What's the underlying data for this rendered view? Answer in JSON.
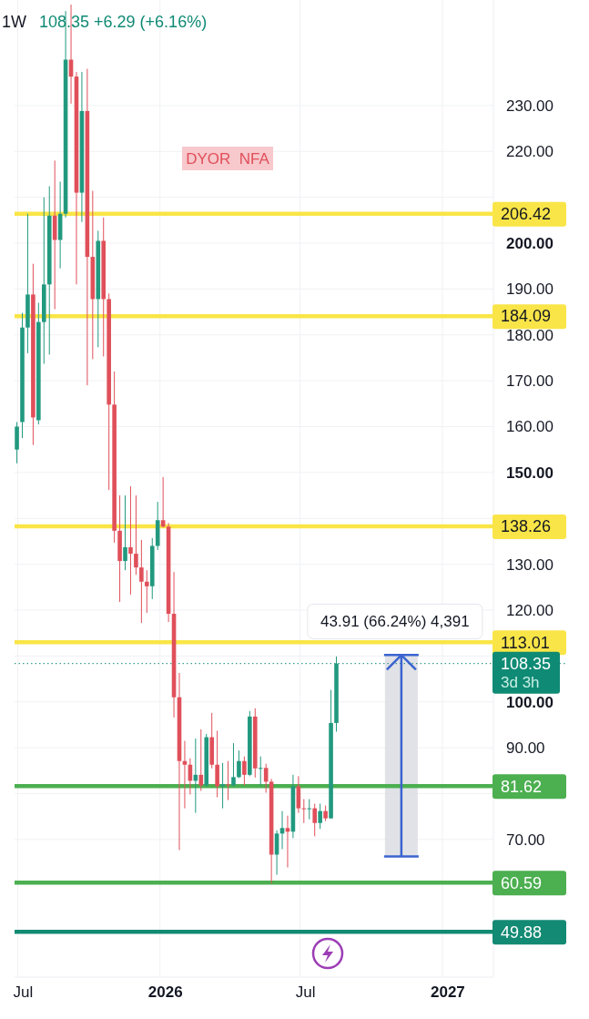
{
  "chart_data": {
    "type": "candlestick",
    "title": "1W",
    "subtitle": "108.35 +6.29 (+6.16%)",
    "x": [
      "2025-06-30",
      "2025-07-07",
      "2025-07-14",
      "2025-07-21",
      "2025-07-28",
      "2025-08-04",
      "2025-08-11",
      "2025-08-18",
      "2025-08-25",
      "2025-09-01",
      "2025-09-08",
      "2025-09-15",
      "2025-09-22",
      "2025-09-29",
      "2025-10-06",
      "2025-10-13",
      "2025-10-20",
      "2025-10-27",
      "2025-11-03",
      "2025-11-10",
      "2025-11-17",
      "2025-11-24",
      "2025-12-01",
      "2025-12-08",
      "2025-12-15",
      "2025-12-22",
      "2025-12-29",
      "2026-01-05",
      "2026-01-12",
      "2026-01-19",
      "2026-01-26",
      "2026-02-02",
      "2026-02-09",
      "2026-02-16",
      "2026-02-23",
      "2026-03-02",
      "2026-03-09",
      "2026-03-16",
      "2026-03-23",
      "2026-03-30",
      "2026-04-06",
      "2026-04-13",
      "2026-04-20",
      "2026-04-27",
      "2026-05-04",
      "2026-05-11",
      "2026-05-18",
      "2026-05-25",
      "2026-06-01",
      "2026-06-08",
      "2026-06-15",
      "2026-06-22",
      "2026-06-29",
      "2026-07-06",
      "2026-07-13",
      "2026-07-20",
      "2026-07-27",
      "2026-08-03",
      "2026-08-10",
      "2026-08-17"
    ],
    "ohlc": [
      [
        155,
        161,
        152,
        160
      ],
      [
        161,
        184.8,
        157.5,
        181.6
      ],
      [
        181.6,
        206.4,
        176,
        188.8
      ],
      [
        188.8,
        195.5,
        156,
        162
      ],
      [
        161.4,
        187,
        160.5,
        182.8
      ],
      [
        182.8,
        210,
        173.7,
        191
      ],
      [
        191,
        212.4,
        175.7,
        206
      ],
      [
        206,
        218,
        185.6,
        200.7
      ],
      [
        200.7,
        213.4,
        194.5,
        206.4
      ],
      [
        206.4,
        250.6,
        205.6,
        240
      ],
      [
        240,
        252,
        230.4,
        236.3
      ],
      [
        236.3,
        237.3,
        191,
        211
      ],
      [
        211,
        237.3,
        204.6,
        228.8
      ],
      [
        228.8,
        238,
        169,
        197
      ],
      [
        197,
        211.4,
        174.7,
        187.8
      ],
      [
        187.8,
        202.7,
        177.3,
        200.5
      ],
      [
        200.5,
        205.6,
        175.3,
        187.8
      ],
      [
        187.8,
        189,
        146.2,
        164.8
      ],
      [
        164.8,
        172,
        134.7,
        137.3
      ],
      [
        137.3,
        145,
        121.8,
        130.7
      ],
      [
        130.7,
        145,
        128.7,
        133.7
      ],
      [
        133.7,
        147,
        123.4,
        132.3
      ],
      [
        132.3,
        145,
        127.7,
        129.3
      ],
      [
        129.3,
        135.3,
        117.2,
        126.2
      ],
      [
        126.2,
        128.7,
        119.4,
        125.2
      ],
      [
        125.2,
        135.7,
        122.4,
        134
      ],
      [
        134,
        143.6,
        133.1,
        139.6
      ],
      [
        139.6,
        149,
        138,
        138.2
      ],
      [
        138.2,
        139,
        117.4,
        119.2
      ],
      [
        119.2,
        128.3,
        96.6,
        101
      ],
      [
        101,
        106.3,
        67.7,
        87.1
      ],
      [
        87.1,
        91.5,
        76.8,
        86.3
      ],
      [
        86.3,
        87.7,
        79.8,
        82.8
      ],
      [
        82.8,
        92,
        75.8,
        84.1
      ],
      [
        84.1,
        94,
        80.6,
        81.8
      ],
      [
        81.8,
        93,
        81.5,
        92.3
      ],
      [
        92.3,
        97.6,
        85.5,
        86.3
      ],
      [
        86.3,
        93.7,
        79.2,
        81.6
      ],
      [
        81.6,
        86.7,
        76.8,
        82
      ],
      [
        82,
        87.1,
        78.6,
        81.8
      ],
      [
        81.8,
        91,
        81.6,
        83.6
      ],
      [
        83.6,
        89.4,
        83.4,
        87.1
      ],
      [
        87.1,
        88.1,
        81.8,
        84.1
      ],
      [
        84.1,
        98,
        83.8,
        96.8
      ],
      [
        96.8,
        98.6,
        83.5,
        85.5
      ],
      [
        85.5,
        88.1,
        81.8,
        85.6
      ],
      [
        85.6,
        86.5,
        80.2,
        82.6
      ],
      [
        82.6,
        83.2,
        60.4,
        66.7
      ],
      [
        66.7,
        72,
        62.3,
        71.3
      ],
      [
        71.3,
        76.2,
        67.9,
        72.5
      ],
      [
        72.5,
        75.2,
        63.9,
        71.7
      ],
      [
        71.7,
        84.1,
        70.3,
        81.6
      ],
      [
        81.6,
        83.8,
        75.8,
        76.8
      ],
      [
        76.8,
        78.8,
        73.6,
        76.6
      ],
      [
        76.6,
        78.8,
        74.4,
        76.8
      ],
      [
        76.8,
        77.8,
        70.7,
        73.6
      ],
      [
        73.6,
        77.8,
        72.3,
        76.2
      ],
      [
        76.2,
        77.4,
        74,
        74.6
      ],
      [
        74.6,
        102.6,
        74.6,
        95.4
      ],
      [
        95.4,
        109.9,
        93.5,
        108.35
      ]
    ],
    "series": [
      {
        "type": "bar",
        "x": [
          "2026-11-09"
        ],
        "base": [
          66.3
        ],
        "values": [
          43.9
        ],
        "color": "#dcdde3"
      },
      {
        "type": "line",
        "x": [
          "2026-11-09",
          "2026-11-09"
        ],
        "values": [
          66.3,
          110.2
        ],
        "color": "#3b63d0"
      }
    ],
    "xlim": [
      "2025-06-27",
      "2027-03-08"
    ],
    "xticks": [
      {
        "value": "2025-07-01",
        "label": "Jul"
      },
      {
        "value": "2026-01-01",
        "label": "2026"
      },
      {
        "value": "2026-07-01",
        "label": "Jul"
      },
      {
        "value": "2027-01-01",
        "label": "2027"
      }
    ],
    "ylim": [
      40,
      253
    ],
    "yticks": [
      {
        "value": 70,
        "label": "70.00"
      },
      {
        "value": 80,
        "label": null
      },
      {
        "value": 90,
        "label": "90.00"
      },
      {
        "value": 100,
        "label": "100.00"
      },
      {
        "value": 110,
        "label": null
      },
      {
        "value": 120,
        "label": "120.00"
      },
      {
        "value": 130,
        "label": "130.00"
      },
      {
        "value": 140,
        "label": null
      },
      {
        "value": 150,
        "label": "150.00"
      },
      {
        "value": 160,
        "label": "160.00"
      },
      {
        "value": 170,
        "label": "170.00"
      },
      {
        "value": 180,
        "label": "180.00"
      },
      {
        "value": 190,
        "label": "190.00"
      },
      {
        "value": 200,
        "label": "200.00"
      },
      {
        "value": 210,
        "label": null
      },
      {
        "value": 220,
        "label": "220.00"
      },
      {
        "value": 230,
        "label": "230.00"
      }
    ],
    "ref_lines": [
      {
        "axis": "y",
        "value": 206.42,
        "label": "206.42",
        "color": "#f9e547"
      },
      {
        "axis": "y",
        "value": 184.09,
        "label": "184.09",
        "color": "#f9e547"
      },
      {
        "axis": "y",
        "value": 138.26,
        "label": "138.26",
        "color": "#f9e547"
      },
      {
        "axis": "y",
        "value": 113.01,
        "label": "113.01",
        "color": "#f9e547"
      },
      {
        "axis": "y",
        "value": 108.35,
        "label": "108.35",
        "color": "#0f8a74",
        "line_style": "dotted"
      },
      {
        "axis": "y",
        "value": 81.62,
        "label": "81.62",
        "color": "#4caf50"
      },
      {
        "axis": "y",
        "value": 60.59,
        "label": "60.59",
        "color": "#4caf50"
      },
      {
        "axis": "y",
        "value": 49.88,
        "label": "49.88",
        "color": "#138a73"
      }
    ],
    "annotations": [
      "DYOR  NFA",
      {
        "text": "43.91 (66.24%) 4,391",
        "x": "2026-11-09",
        "y": 110.2
      },
      {
        "text": "3d 3h",
        "y": 108.35
      }
    ],
    "grid": true
  }
}
